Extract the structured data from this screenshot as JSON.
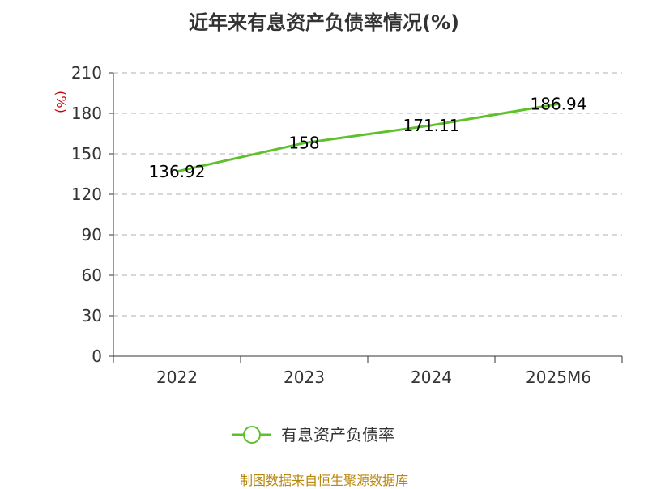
{
  "chart_data": {
    "type": "line",
    "title": "近年来有息资产负债率情况(%)",
    "ylabel": "(%)",
    "xlabel": "",
    "categories": [
      "2022",
      "2023",
      "2024",
      "2025M6"
    ],
    "series": [
      {
        "name": "有息资产负债率",
        "values": [
          136.92,
          158,
          171.11,
          186.94
        ]
      }
    ],
    "ylim": [
      0,
      210
    ],
    "yticks": [
      0,
      30,
      60,
      90,
      120,
      150,
      180,
      210
    ],
    "data_labels": [
      "136.92",
      "158",
      "171.11",
      "186.94"
    ],
    "grid": "horizontal-dashed",
    "legend_position": "bottom-center",
    "colors": {
      "line": "#5ec12b",
      "grid": "#cccccc",
      "axis": "#333333",
      "unit": "#cc0000"
    }
  },
  "source": "制图数据来自恒生聚源数据库"
}
